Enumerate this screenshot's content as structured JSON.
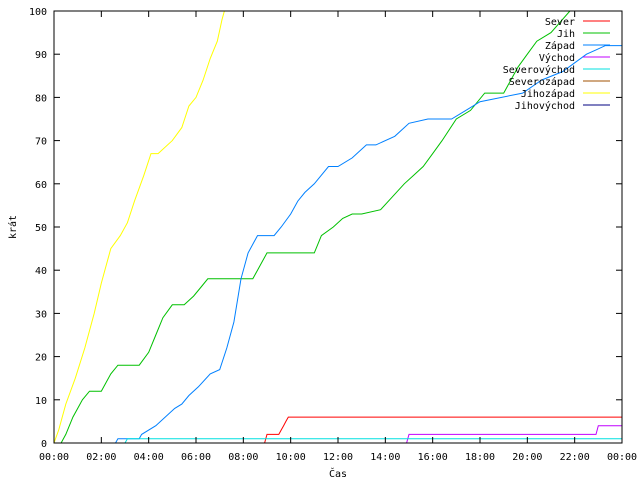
{
  "chart_data": {
    "type": "line",
    "title": "",
    "xlabel": "Čas",
    "ylabel": "krát",
    "xlim": [
      "00:00",
      "24:00"
    ],
    "ylim": [
      0,
      100
    ],
    "x_ticks": [
      "00:00",
      "02:00",
      "04:00",
      "06:00",
      "08:00",
      "10:00",
      "12:00",
      "14:00",
      "16:00",
      "18:00",
      "20:00",
      "22:00",
      "00:00"
    ],
    "y_ticks": [
      "0",
      "10",
      "20",
      "30",
      "40",
      "50",
      "60",
      "70",
      "80",
      "90",
      "100"
    ],
    "grid": false,
    "legend_position": "top-right",
    "x_unit": "hours since 00:00",
    "series": [
      {
        "name": "Sever",
        "color": "#ff0000",
        "x": [
          0,
          8.9,
          9.0,
          9.5,
          9.6,
          9.7,
          9.8,
          9.9,
          24
        ],
        "y": [
          0,
          0,
          2,
          2,
          3,
          4,
          5,
          6,
          6
        ]
      },
      {
        "name": "Jih",
        "color": "#00c000",
        "x": [
          0,
          0.3,
          0.5,
          0.8,
          1.0,
          1.2,
          1.5,
          2.0,
          2.4,
          2.7,
          3.6,
          4.0,
          4.3,
          4.6,
          5.0,
          5.5,
          5.9,
          6.2,
          6.5,
          8.4,
          8.6,
          9.0,
          11.0,
          11.3,
          11.8,
          12.2,
          12.6,
          13.0,
          13.8,
          14.3,
          14.8,
          15.2,
          15.6,
          16.0,
          16.4,
          17.0,
          17.6,
          18.2,
          19.0,
          19.6,
          20.0,
          20.4,
          21.0,
          21.8,
          24
        ],
        "y": [
          0,
          0,
          2,
          6,
          8,
          10,
          12,
          12,
          16,
          18,
          18,
          21,
          25,
          29,
          32,
          32,
          34,
          36,
          38,
          38,
          40,
          44,
          44,
          48,
          50,
          52,
          53,
          53,
          54,
          57,
          60,
          62,
          64,
          67,
          70,
          75,
          77,
          81,
          81,
          87,
          90,
          93,
          95,
          100,
          100
        ]
      },
      {
        "name": "Západ",
        "color": "#0080ff",
        "x": [
          0,
          2.6,
          2.7,
          3.6,
          3.7,
          4.3,
          5.1,
          5.4,
          5.7,
          6.1,
          6.6,
          7.0,
          7.3,
          7.6,
          7.9,
          8.2,
          8.6,
          9.3,
          9.6,
          10.0,
          10.3,
          10.6,
          11.0,
          11.6,
          12.0,
          12.6,
          13.2,
          13.6,
          14.4,
          15.0,
          15.8,
          16.3,
          16.8,
          17.4,
          18.0,
          19.8,
          20.6,
          21.5,
          22.0,
          22.5,
          22.9,
          23.3,
          24
        ],
        "y": [
          0,
          0,
          1,
          1,
          2,
          4,
          8,
          9,
          11,
          13,
          16,
          17,
          22,
          28,
          38,
          44,
          48,
          48,
          50,
          53,
          56,
          58,
          60,
          64,
          64,
          66,
          69,
          69,
          71,
          74,
          75,
          75,
          75,
          77,
          79,
          81,
          84,
          86,
          88,
          90,
          91,
          92,
          92
        ]
      },
      {
        "name": "Východ",
        "color": "#c000ff",
        "x": [
          0,
          14.9,
          15.0,
          22.9,
          23.0,
          24
        ],
        "y": [
          0,
          0,
          2,
          2,
          4,
          4
        ]
      },
      {
        "name": "Severovýchod",
        "color": "#00e0e0",
        "x": [
          0,
          3.0,
          3.1,
          24
        ],
        "y": [
          0,
          0,
          1,
          1
        ]
      },
      {
        "name": "Severozápad",
        "color": "#a05000",
        "x": [
          0,
          24
        ],
        "y": [
          0,
          0
        ]
      },
      {
        "name": "Jihozápad",
        "color": "#ffff00",
        "x": [
          0,
          0.2,
          0.5,
          0.9,
          1.3,
          1.7,
          2.0,
          2.4,
          2.8,
          3.1,
          3.4,
          3.8,
          4.1,
          4.4,
          5.0,
          5.4,
          5.7,
          6.0,
          6.3,
          6.6,
          6.9,
          7.1,
          7.2
        ],
        "y": [
          0,
          3,
          9,
          15,
          22,
          30,
          37,
          45,
          48,
          51,
          56,
          62,
          67,
          67,
          70,
          73,
          78,
          80,
          84,
          89,
          93,
          98,
          100
        ]
      },
      {
        "name": "Jihovýchod",
        "color": "#000080",
        "x": [
          0,
          24
        ],
        "y": [
          0,
          0
        ]
      }
    ]
  }
}
